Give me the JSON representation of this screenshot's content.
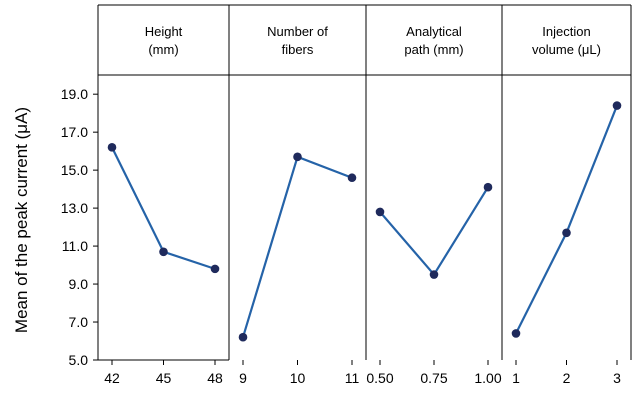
{
  "chart_data": {
    "type": "line",
    "ylabel": "Mean of  the peak current  (μA)",
    "ylim": [
      5.0,
      19.8
    ],
    "yticks": [
      "5.0",
      "7.0",
      "9.0",
      "11.0",
      "13.0",
      "15.0",
      "17.0",
      "19.0"
    ],
    "line_color": "#2563a8",
    "marker_color": "#1f2a5c",
    "panels": [
      {
        "header": [
          "Height",
          "(mm)"
        ],
        "categories": [
          "42",
          "45",
          "48"
        ],
        "values": [
          16.2,
          10.7,
          9.8
        ]
      },
      {
        "header": [
          "Number of",
          "fibers"
        ],
        "categories": [
          "9",
          "10",
          "11"
        ],
        "values": [
          6.2,
          15.7,
          14.6
        ]
      },
      {
        "header": [
          "Analytical",
          "path (mm)"
        ],
        "categories": [
          "0.50",
          "0.75",
          "1.00"
        ],
        "values": [
          12.8,
          9.5,
          14.1
        ]
      },
      {
        "header": [
          "Injection",
          "volume (μL)"
        ],
        "categories": [
          "1",
          "2",
          "3"
        ],
        "values": [
          6.4,
          11.7,
          18.4
        ]
      }
    ]
  }
}
